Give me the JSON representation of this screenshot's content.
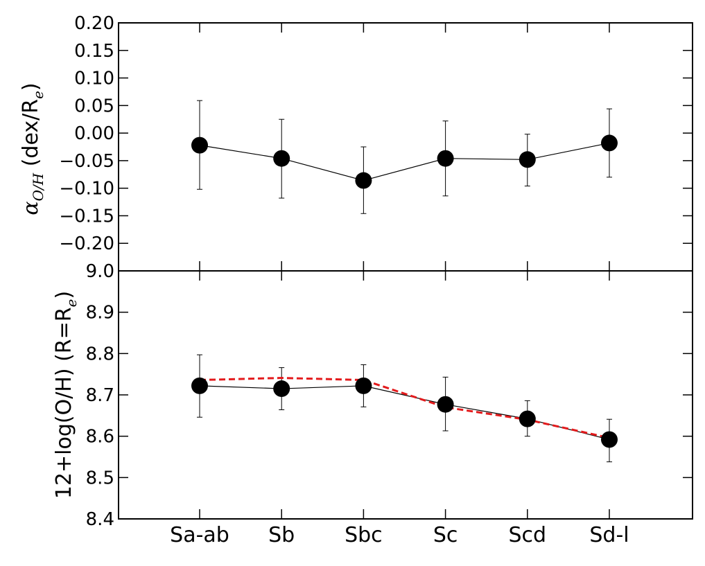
{
  "chart_data": [
    {
      "type": "line",
      "panel": "top",
      "categories": [
        "Sa-ab",
        "Sb",
        "Sbc",
        "Sc",
        "Scd",
        "Sd-l"
      ],
      "ylabel": {
        "alpha": "α",
        "sub": "O/H",
        "rest": " (dex/R",
        "sub2": "e",
        "close": ")"
      },
      "ylim": [
        -0.25,
        0.2
      ],
      "yticks": [
        0.2,
        0.15,
        0.1,
        0.05,
        0.0,
        -0.05,
        -0.1,
        -0.15,
        -0.2
      ],
      "ytick_labels": [
        "0.20",
        "0.15",
        "0.10",
        "0.05",
        "0.00",
        "−0.05",
        "−0.10",
        "−0.15",
        "−0.20"
      ],
      "series": [
        {
          "values": [
            -0.022,
            -0.046,
            -0.086,
            -0.046,
            -0.048,
            -0.018
          ],
          "err_lower": [
            -0.102,
            -0.118,
            -0.146,
            -0.114,
            -0.096,
            -0.08
          ],
          "err_upper": [
            0.059,
            0.025,
            -0.025,
            0.022,
            -0.002,
            0.044
          ],
          "color": "#000000",
          "style": "solid",
          "marker": "circle"
        }
      ]
    },
    {
      "type": "line",
      "panel": "bottom",
      "categories": [
        "Sa-ab",
        "Sb",
        "Sbc",
        "Sc",
        "Scd",
        "Sd-l"
      ],
      "ylabel": {
        "main": "12+log(O/H) (R=R",
        "sub": "e",
        "close": ")"
      },
      "ylim": [
        8.4,
        9.0
      ],
      "yticks": [
        9.0,
        8.9,
        8.8,
        8.7,
        8.6,
        8.5,
        8.4
      ],
      "ytick_labels": [
        "9.0",
        "8.9",
        "8.8",
        "8.7",
        "8.6",
        "8.5",
        "8.4"
      ],
      "series": [
        {
          "values": [
            8.722,
            8.715,
            8.722,
            8.677,
            8.642,
            8.592
          ],
          "err_lower": [
            8.646,
            8.664,
            8.671,
            8.613,
            8.6,
            8.538
          ],
          "err_upper": [
            8.797,
            8.766,
            8.773,
            8.743,
            8.686,
            8.641
          ],
          "color": "#000000",
          "style": "solid",
          "marker": "circle"
        },
        {
          "values": [
            8.736,
            8.741,
            8.736,
            8.67,
            8.64,
            8.596
          ],
          "color": "#e31a1c",
          "style": "dashed",
          "marker": "none"
        }
      ]
    }
  ]
}
